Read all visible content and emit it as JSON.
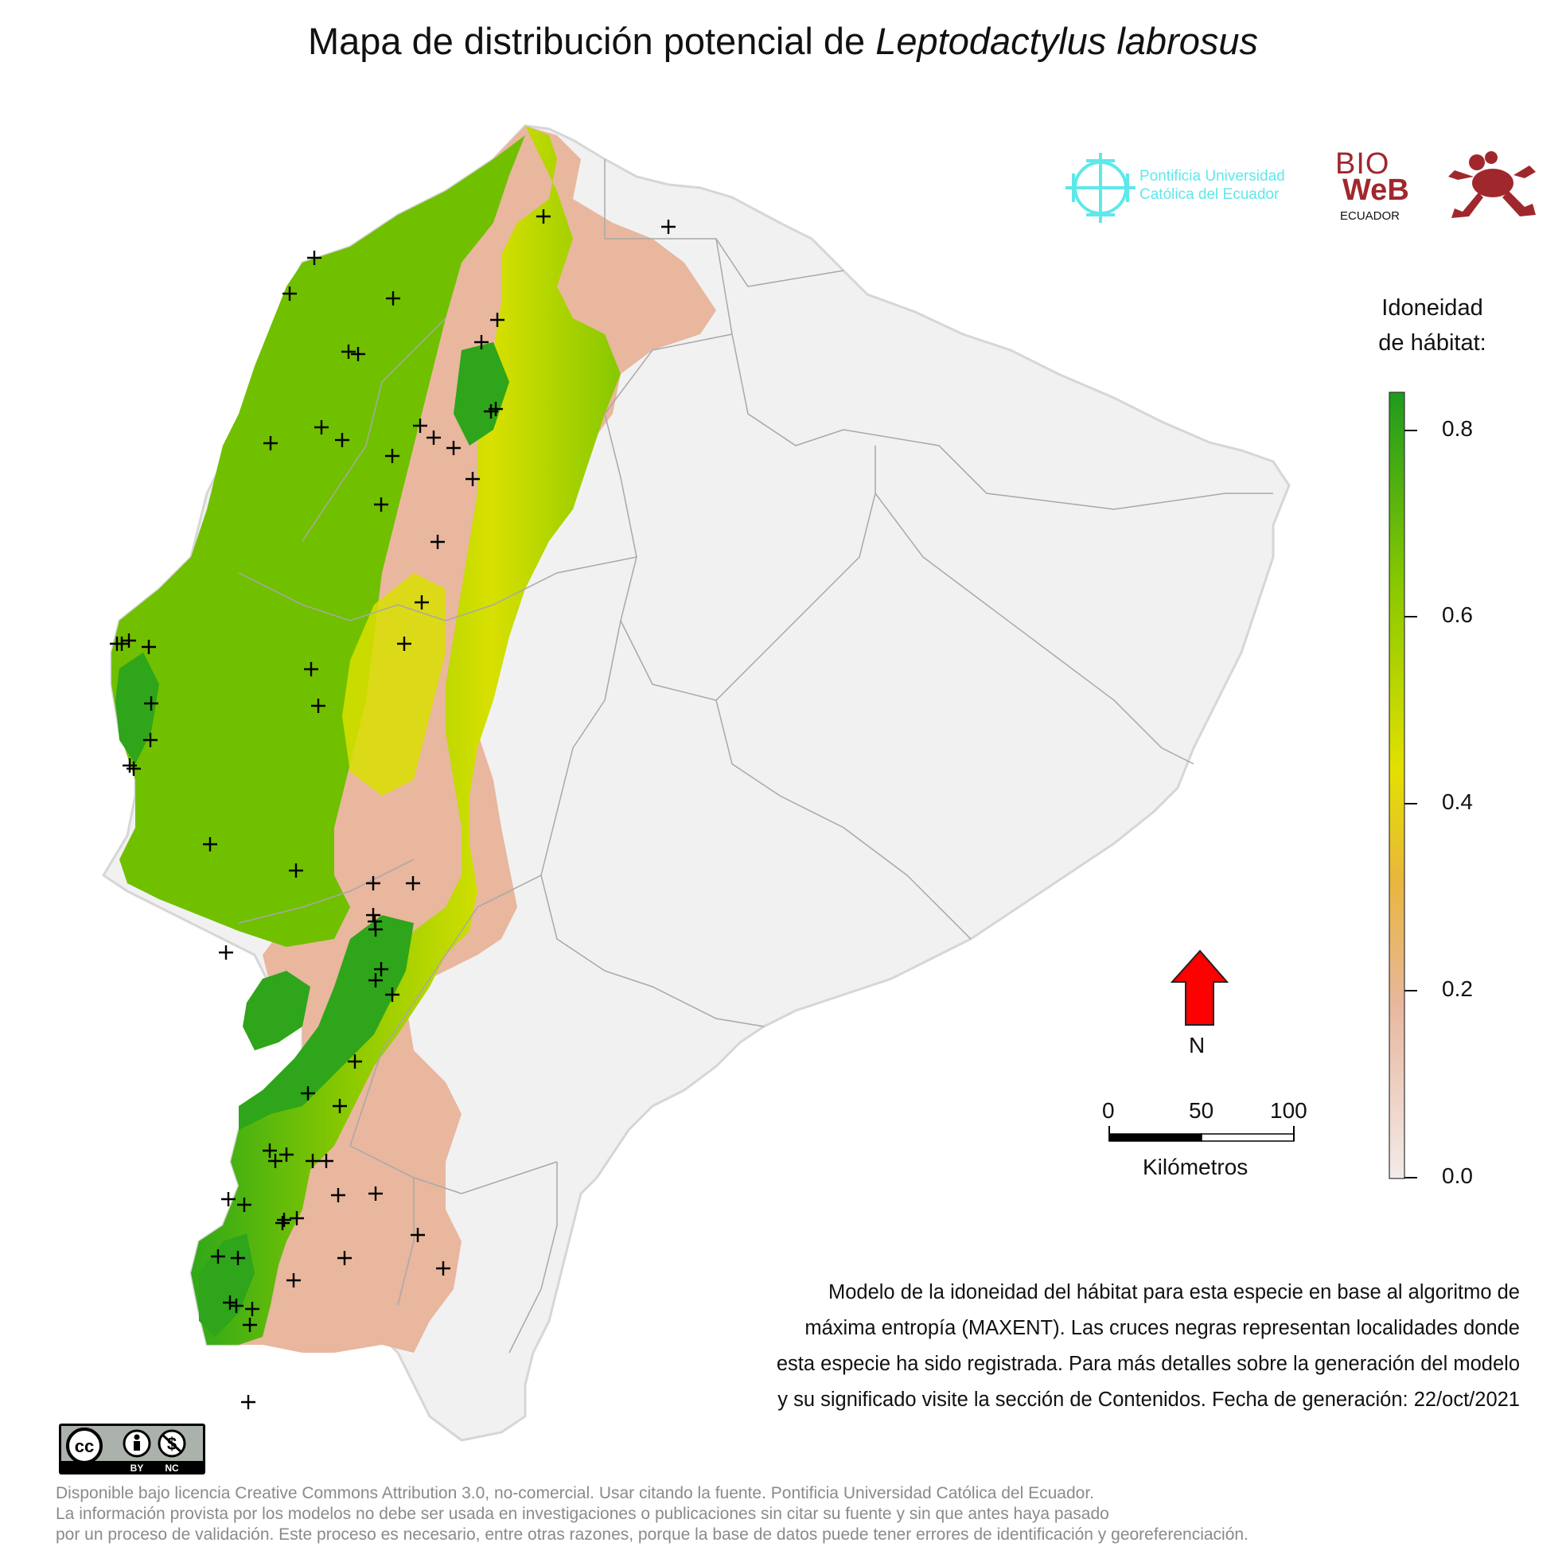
{
  "title": {
    "prefix": "Mapa de distribución potencial de ",
    "species": "Leptodactylus labrosus"
  },
  "logos": {
    "puce": [
      "Pontificia Universidad",
      "Católica del Ecuador"
    ],
    "bioweb": {
      "bio": "BIO",
      "web": "WeB",
      "ecuador": "ECUADOR"
    }
  },
  "legend": {
    "title": [
      "Idoneidad",
      "de hábitat:"
    ],
    "ticks": [
      "0.8",
      "0.6",
      "0.4",
      "0.2",
      "0.0"
    ],
    "colors": [
      "#f3ebe9",
      "#e8b79e",
      "#e9b63c",
      "#e3e000",
      "#86c800",
      "#1e9a1e"
    ]
  },
  "north_arrow": {
    "label": "N",
    "color": "#ff0000"
  },
  "scale_bar": {
    "labels": [
      "0",
      "50",
      "100"
    ],
    "unit": "Kilómetros"
  },
  "description": [
    "Modelo de la idoneidad del hábitat para esta especie en base al algoritmo de",
    "máxima entropía (MAXENT). Las cruces negras representan localidades donde",
    "esta especie ha sido registrada. Para más detalles sobre la generación del modelo",
    "y su significado visite la sección de Contenidos. Fecha de generación: 22/oct/2021"
  ],
  "license_badge": {
    "cc": "cc",
    "by": "BY",
    "nc": "NC"
  },
  "footer": [
    "Disponible bajo licencia Creative Commons Attribution 3.0, no-comercial. Usar citando la fuente. Pontificia Universidad Católica del Ecuador.",
    "La información provista por los modelos no debe ser usada en investigaciones o publicaciones sin citar su fuente y sin que antes haya pasado",
    "por un proceso de validación. Este proceso es necesario, entre otras razones, porque la base de datos puede tener errores de identificación y georeferenciación."
  ],
  "map": {
    "land_color": "#f1f1f1",
    "border_color": "#a8a8a8",
    "marker_symbol": "+",
    "record_count": 70
  }
}
